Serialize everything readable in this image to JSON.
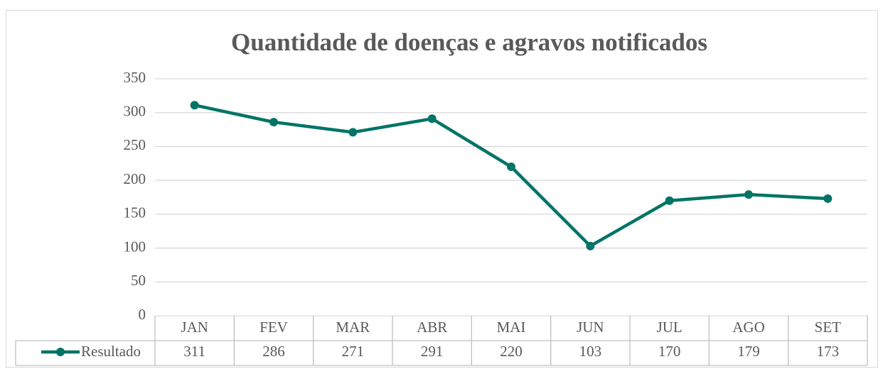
{
  "chart_data": {
    "type": "line",
    "title": "Quantidade de doenças e agravos notificados",
    "categories": [
      "JAN",
      "FEV",
      "MAR",
      "ABR",
      "MAI",
      "JUN",
      "JUL",
      "AGO",
      "SET"
    ],
    "series": [
      {
        "name": "Resultado",
        "color": "#007466",
        "values": [
          311,
          286,
          271,
          291,
          220,
          103,
          170,
          179,
          173
        ]
      }
    ],
    "ylim": [
      0,
      350
    ],
    "yticks": [
      0,
      50,
      100,
      150,
      200,
      250,
      300,
      350
    ],
    "grid": true,
    "data_table": true
  }
}
